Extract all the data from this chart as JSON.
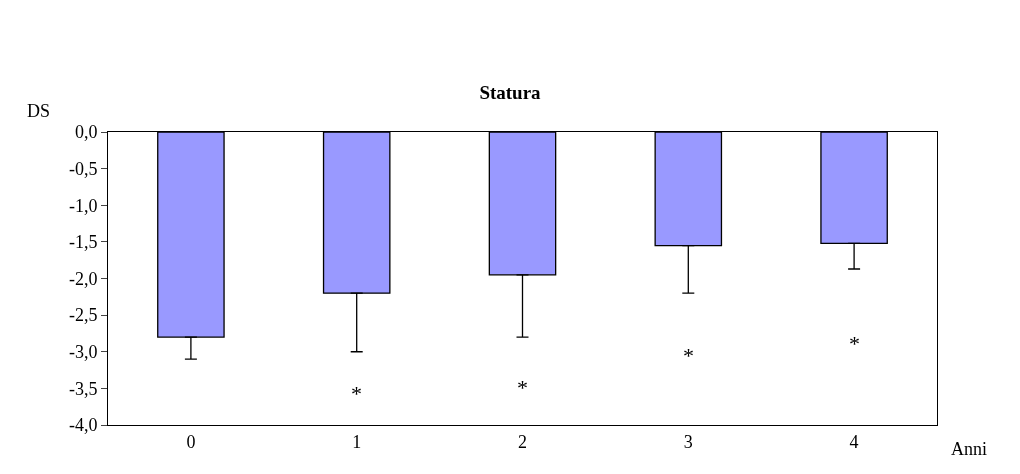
{
  "chart_data": {
    "type": "bar",
    "title": "Statura",
    "ylabel": "DS",
    "xlabel": "Anni",
    "categories": [
      "0",
      "1",
      "2",
      "3",
      "4"
    ],
    "values": [
      -2.8,
      -2.2,
      -1.95,
      -1.55,
      -1.52
    ],
    "errors": [
      [
        -3.1,
        -2.8
      ],
      [
        -3.0,
        -2.2
      ],
      [
        -2.8,
        -1.95
      ],
      [
        -2.2,
        -1.55
      ],
      [
        -1.87,
        -1.52
      ]
    ],
    "color": "#9999ff",
    "ylim": [
      -4,
      0
    ],
    "yticks": [
      {
        "value": 0,
        "label": "0,0"
      },
      {
        "value": -0.5,
        "label": "-0,5"
      },
      {
        "value": -1,
        "label": "-1,0"
      },
      {
        "value": -1.5,
        "label": "-1,5"
      },
      {
        "value": -2,
        "label": "-2,0"
      },
      {
        "value": -2.5,
        "label": "-2,5"
      },
      {
        "value": -3,
        "label": "-3,0"
      },
      {
        "value": -3.5,
        "label": "-3,5"
      },
      {
        "value": -4,
        "label": "-4,0"
      }
    ],
    "annotations": [
      "*",
      "*",
      "*",
      "*"
    ],
    "grid": false,
    "legend": false
  }
}
